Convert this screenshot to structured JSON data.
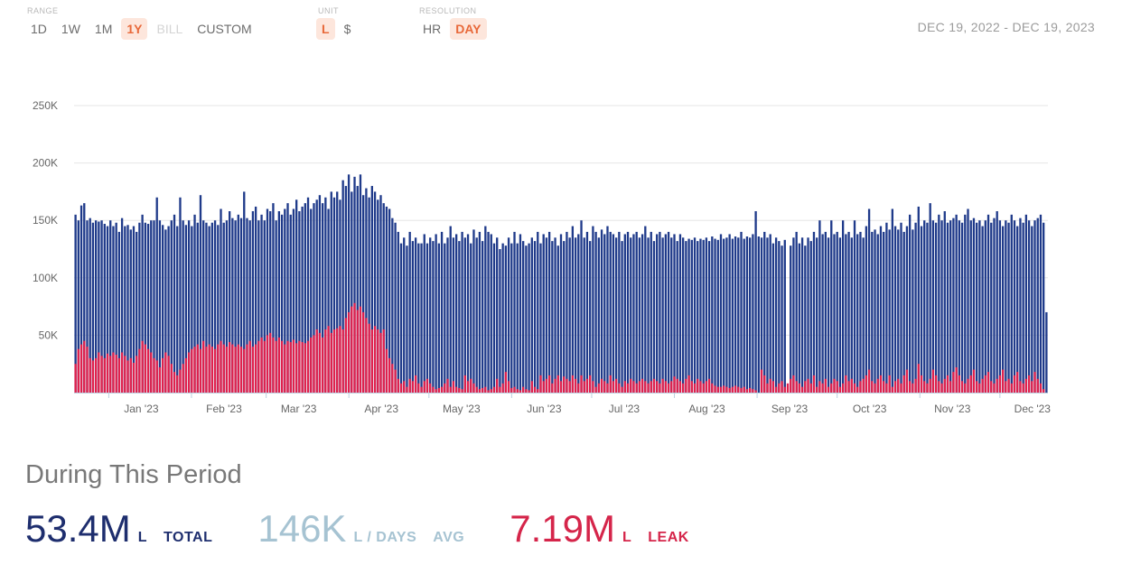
{
  "controls": {
    "range": {
      "label": "RANGE",
      "options": [
        "1D",
        "1W",
        "1M",
        "1Y",
        "BILL",
        "CUSTOM"
      ],
      "active": "1Y",
      "disabled": [
        "BILL"
      ]
    },
    "unit": {
      "label": "UNIT",
      "options": [
        "L",
        "$"
      ],
      "active": "L"
    },
    "resolution": {
      "label": "RESOLUTION",
      "options": [
        "HR",
        "DAY"
      ],
      "active": "DAY"
    }
  },
  "date_range": "DEC 19, 2022 - DEC 19, 2023",
  "summary": {
    "title": "During This Period",
    "total_value": "53.4M",
    "total_unit": "L",
    "total_label": "TOTAL",
    "avg_value": "146K",
    "avg_unit": "L / DAYS",
    "avg_label": "AVG",
    "leak_value": "7.19M",
    "leak_unit": "L",
    "leak_label": "LEAK"
  },
  "colors": {
    "total": "#1e2e6e",
    "leak": "#d5254a",
    "avg": "#a6c3d2",
    "accent": "#e8693a",
    "bar_total": "#1f3a8a",
    "bar_leak": "#e0214d"
  },
  "chart_data": {
    "type": "bar",
    "stacked": true,
    "x_start": "2022-12-19",
    "x_end": "2023-12-19",
    "ylim": [
      0,
      250000
    ],
    "y_ticks": [
      50000,
      100000,
      150000,
      200000,
      250000
    ],
    "y_tick_labels": [
      "50K",
      "100K",
      "150K",
      "200K",
      "250K"
    ],
    "x_tick_labels": [
      "Jan '23",
      "Feb '23",
      "Mar '23",
      "Apr '23",
      "May '23",
      "Jun '23",
      "Jul '23",
      "Aug '23",
      "Sep '23",
      "Oct '23",
      "Nov '23",
      "Dec '23"
    ],
    "x_tick_dates": [
      "2023-01-01",
      "2023-02-01",
      "2023-03-01",
      "2023-04-01",
      "2023-05-01",
      "2023-06-01",
      "2023-07-01",
      "2023-08-01",
      "2023-09-01",
      "2023-10-01",
      "2023-11-01",
      "2023-12-01"
    ],
    "grid": true,
    "series": [
      {
        "color": "#1f3a8a",
        "values": [
          155000,
          150000,
          163000,
          165000,
          150000,
          152000,
          148000,
          150000,
          149000,
          150000,
          147000,
          145000,
          150000,
          145000,
          148000,
          140000,
          152000,
          145000,
          146000,
          142000,
          145000,
          140000,
          148000,
          155000,
          148000,
          147000,
          150000,
          150000,
          170000,
          150000,
          146000,
          142000,
          145000,
          150000,
          155000,
          145000,
          170000,
          150000,
          146000,
          150000,
          145000,
          155000,
          148000,
          172000,
          150000,
          148000,
          145000,
          148000,
          150000,
          146000,
          160000,
          148000,
          150000,
          158000,
          152000,
          150000,
          155000,
          152000,
          175000,
          152000,
          150000,
          158000,
          162000,
          150000,
          155000,
          150000,
          160000,
          158000,
          165000,
          150000,
          158000,
          155000,
          160000,
          165000,
          155000,
          160000,
          168000,
          158000,
          162000,
          165000,
          170000,
          160000,
          165000,
          168000,
          172000,
          165000,
          170000,
          160000,
          175000,
          170000,
          175000,
          168000,
          185000,
          180000,
          190000,
          175000,
          188000,
          180000,
          190000,
          172000,
          178000,
          170000,
          180000,
          175000,
          168000,
          172000,
          165000,
          162000,
          160000,
          152000,
          148000,
          140000,
          130000,
          135000,
          128000,
          140000,
          132000,
          135000,
          130000,
          130000,
          138000,
          130000,
          135000,
          132000,
          138000,
          130000,
          140000,
          130000,
          135000,
          145000,
          135000,
          138000,
          132000,
          140000,
          135000,
          138000,
          130000,
          142000,
          135000,
          140000,
          132000,
          145000,
          140000,
          138000,
          130000,
          135000,
          125000,
          130000,
          128000,
          135000,
          130000,
          140000,
          130000,
          138000,
          132000,
          128000,
          130000,
          135000,
          132000,
          140000,
          130000,
          138000,
          135000,
          140000,
          132000,
          135000,
          128000,
          138000,
          132000,
          140000,
          135000,
          145000,
          135000,
          138000,
          150000,
          135000,
          140000,
          132000,
          145000,
          140000,
          135000,
          142000,
          138000,
          145000,
          140000,
          138000,
          135000,
          140000,
          132000,
          138000,
          140000,
          135000,
          138000,
          140000,
          135000,
          138000,
          145000,
          135000,
          140000,
          132000,
          138000,
          140000,
          135000,
          138000,
          140000,
          135000,
          138000,
          132000,
          138000,
          135000,
          132000,
          134000,
          133000,
          135000,
          132000,
          134000,
          133000,
          135000,
          132000,
          136000,
          134000,
          133000,
          138000,
          134000,
          135000,
          138000,
          134000,
          136000,
          135000,
          140000,
          134000,
          136000,
          135000,
          138000,
          158000,
          136000,
          135000,
          140000,
          135000,
          138000,
          130000,
          135000,
          132000,
          128000,
          133000,
          0,
          128000,
          135000,
          140000,
          130000,
          135000,
          128000,
          135000,
          132000,
          140000,
          135000,
          150000,
          138000,
          140000,
          135000,
          150000,
          138000,
          140000,
          135000,
          150000,
          138000,
          140000,
          135000,
          150000,
          138000,
          140000,
          135000,
          145000,
          160000,
          140000,
          142000,
          138000,
          145000,
          140000,
          148000,
          142000,
          160000,
          145000,
          142000,
          148000,
          140000,
          145000,
          155000,
          142000,
          148000,
          162000,
          145000,
          150000,
          148000,
          165000,
          150000,
          148000,
          155000,
          150000,
          158000,
          148000,
          150000,
          152000,
          155000,
          150000,
          148000,
          155000,
          160000,
          150000,
          152000,
          148000,
          150000,
          145000,
          150000,
          155000,
          148000,
          152000,
          158000,
          150000,
          145000,
          150000,
          148000,
          155000,
          150000,
          145000,
          152000,
          148000,
          155000,
          150000,
          145000,
          150000,
          152000,
          155000,
          148000,
          70000
        ]
      },
      {
        "color": "#e0214d",
        "values": [
          25000,
          38000,
          42000,
          45000,
          40000,
          30000,
          28000,
          30000,
          35000,
          32000,
          30000,
          34000,
          32000,
          35000,
          33000,
          30000,
          35000,
          32000,
          28000,
          30000,
          26000,
          32000,
          38000,
          45000,
          42000,
          38000,
          35000,
          30000,
          28000,
          22000,
          30000,
          35000,
          32000,
          25000,
          18000,
          15000,
          20000,
          25000,
          30000,
          35000,
          38000,
          40000,
          42000,
          38000,
          45000,
          40000,
          42000,
          40000,
          38000,
          42000,
          45000,
          42000,
          40000,
          44000,
          42000,
          40000,
          42000,
          40000,
          38000,
          42000,
          45000,
          40000,
          42000,
          45000,
          48000,
          45000,
          50000,
          52000,
          48000,
          45000,
          48000,
          45000,
          42000,
          45000,
          44000,
          46000,
          43000,
          45000,
          44000,
          43000,
          45000,
          48000,
          50000,
          55000,
          52000,
          48000,
          55000,
          58000,
          52000,
          55000,
          56000,
          58000,
          55000,
          65000,
          70000,
          75000,
          78000,
          72000,
          75000,
          70000,
          65000,
          60000,
          55000,
          58000,
          55000,
          52000,
          55000,
          38000,
          30000,
          25000,
          20000,
          12000,
          8000,
          10000,
          5000,
          12000,
          10000,
          15000,
          8000,
          5000,
          10000,
          12000,
          8000,
          5000,
          3000,
          4000,
          5000,
          8000,
          12000,
          5000,
          10000,
          5000,
          4000,
          3000,
          15000,
          10000,
          12000,
          8000,
          5000,
          3000,
          4000,
          5000,
          2000,
          3000,
          5000,
          12000,
          5000,
          8000,
          18000,
          10000,
          4000,
          5000,
          3000,
          2000,
          5000,
          3000,
          2000,
          10000,
          5000,
          3000,
          15000,
          10000,
          12000,
          15000,
          8000,
          12000,
          15000,
          10000,
          14000,
          12000,
          10000,
          15000,
          12000,
          8000,
          15000,
          10000,
          12000,
          15000,
          10000,
          5000,
          8000,
          12000,
          10000,
          8000,
          15000,
          10000,
          12000,
          8000,
          5000,
          10000,
          8000,
          12000,
          10000,
          8000,
          10000,
          12000,
          10000,
          8000,
          10000,
          12000,
          10000,
          8000,
          12000,
          10000,
          8000,
          10000,
          14000,
          12000,
          10000,
          8000,
          12000,
          15000,
          10000,
          8000,
          12000,
          10000,
          8000,
          10000,
          12000,
          8000,
          6000,
          5000,
          5000,
          6000,
          5000,
          4000,
          5000,
          6000,
          5000,
          4000,
          5000,
          3000,
          4000,
          3000,
          2000,
          0,
          20000,
          15000,
          8000,
          12000,
          10000,
          5000,
          8000,
          10000,
          5000,
          8000,
          12000,
          15000,
          10000,
          8000,
          5000,
          10000,
          12000,
          8000,
          15000,
          5000,
          10000,
          8000,
          12000,
          5000,
          8000,
          12000,
          10000,
          5000,
          8000,
          15000,
          10000,
          12000,
          8000,
          5000,
          10000,
          12000,
          15000,
          20000,
          10000,
          8000,
          12000,
          15000,
          10000,
          8000,
          15000,
          5000,
          10000,
          12000,
          8000,
          15000,
          20000,
          10000,
          8000,
          12000,
          25000,
          15000,
          10000,
          8000,
          12000,
          20000,
          15000,
          10000,
          8000,
          12000,
          15000,
          10000,
          18000,
          22000,
          15000,
          10000,
          8000,
          12000,
          15000,
          20000,
          10000,
          8000,
          12000,
          15000,
          18000,
          10000,
          8000,
          12000,
          15000,
          20000,
          10000,
          12000,
          8000,
          15000,
          18000,
          10000,
          8000,
          12000,
          15000,
          10000,
          18000,
          12000,
          8000,
          3000
        ]
      }
    ]
  }
}
